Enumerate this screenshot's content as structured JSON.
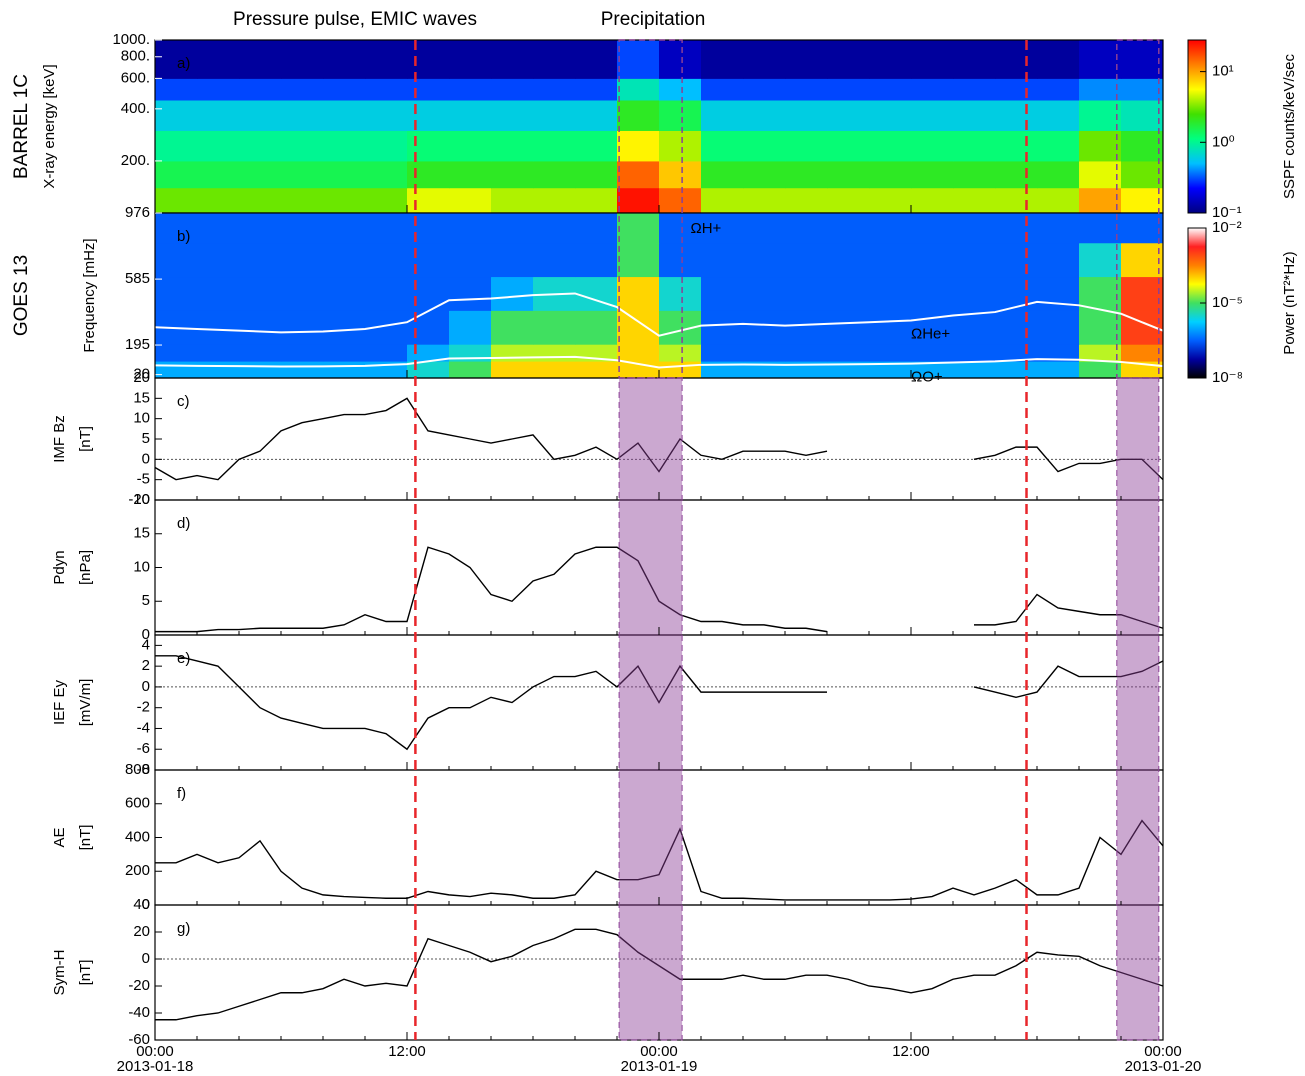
{
  "annotations": [
    {
      "text": "Pressure pulse, EMIC waves",
      "color": "#e8262b"
    },
    {
      "text": "Precipitation",
      "color": "#8b3f96"
    }
  ],
  "time_axis": {
    "xlim": [
      0,
      48
    ],
    "xticks": [
      {
        "value": 0,
        "label": "00:00"
      },
      {
        "value": 12,
        "label": "12:00"
      },
      {
        "value": 24,
        "label": "00:00"
      },
      {
        "value": 36,
        "label": "12:00"
      },
      {
        "value": 48,
        "label": "00:00"
      }
    ],
    "dates": [
      {
        "value": 0,
        "label": "2013-01-18"
      },
      {
        "value": 24,
        "label": "2013-01-19"
      },
      {
        "value": 48,
        "label": "2013-01-20"
      }
    ]
  },
  "events": {
    "lines": [
      12.4,
      41.5
    ],
    "line_color": "#e8262b",
    "spans": [
      [
        22.1,
        25.1
      ],
      [
        45.8,
        47.8
      ]
    ],
    "span_color": "#8b3f96"
  },
  "chart_data": [
    {
      "type": "heatmap",
      "panel_label": "a)",
      "ylabel": [
        "BARREL 1C",
        "X-ray energy [keV]"
      ],
      "log_y": true,
      "ylim": [
        100,
        1000
      ],
      "yticks": [
        {
          "value": 1000,
          "label": "1000."
        },
        {
          "value": 800,
          "label": "800."
        },
        {
          "value": 600,
          "label": "600."
        },
        {
          "value": 400,
          "label": "400."
        },
        {
          "value": 200,
          "label": "200."
        }
      ],
      "x_bins": [
        0,
        2,
        4,
        6,
        8,
        10,
        12,
        14,
        16,
        18,
        20,
        22,
        24,
        26,
        28,
        30,
        32,
        34,
        36,
        38,
        40,
        42,
        44,
        46,
        48
      ],
      "y_bins": [
        100,
        140,
        200,
        300,
        450,
        600,
        1000
      ],
      "values": [
        [
          3,
          3,
          3,
          3,
          3,
          3,
          5,
          5,
          4,
          4,
          4,
          25,
          15,
          4,
          4,
          4,
          4,
          4,
          4,
          4,
          4,
          4,
          10,
          6
        ],
        [
          1.5,
          1.5,
          1.5,
          1.5,
          1.5,
          1.5,
          2,
          2,
          2,
          2,
          2,
          15,
          8,
          2,
          2,
          2,
          2,
          2,
          2,
          2,
          2,
          2,
          5,
          3
        ],
        [
          1,
          1,
          1,
          1,
          1,
          1,
          1.2,
          1.2,
          1.2,
          1.2,
          1.2,
          6,
          4,
          1.2,
          1.2,
          1.2,
          1.2,
          1.2,
          1.2,
          1.2,
          1.2,
          1.2,
          3,
          2
        ],
        [
          0.6,
          0.6,
          0.6,
          0.6,
          0.6,
          0.6,
          0.6,
          0.6,
          0.6,
          0.6,
          0.6,
          2,
          1.5,
          0.6,
          0.6,
          0.6,
          0.6,
          0.6,
          0.6,
          0.6,
          0.6,
          0.6,
          1,
          0.8
        ],
        [
          0.3,
          0.3,
          0.3,
          0.3,
          0.3,
          0.3,
          0.3,
          0.3,
          0.3,
          0.3,
          0.3,
          0.8,
          0.5,
          0.3,
          0.3,
          0.3,
          0.3,
          0.3,
          0.3,
          0.3,
          0.3,
          0.3,
          0.4,
          0.4
        ],
        [
          0.12,
          0.12,
          0.12,
          0.12,
          0.12,
          0.12,
          0.12,
          0.12,
          0.12,
          0.12,
          0.12,
          0.3,
          0.15,
          0.12,
          0.12,
          0.12,
          0.12,
          0.12,
          0.12,
          0.12,
          0.12,
          0.12,
          0.15,
          0.15
        ]
      ],
      "colorbar": {
        "label": "SSPF counts/keV/sec",
        "zlim": [
          0.1,
          28
        ],
        "log": true,
        "zticks": [
          {
            "value": 0.1,
            "label": "10⁻¹"
          },
          {
            "value": 1,
            "label": "10⁰"
          },
          {
            "value": 10,
            "label": "10¹"
          }
        ],
        "colormap": [
          "#000080",
          "#0000ff",
          "#00bfff",
          "#00ff80",
          "#40e000",
          "#ffff00",
          "#ff8000",
          "#ff0000"
        ]
      }
    },
    {
      "type": "heatmap",
      "panel_label": "b)",
      "ylabel": [
        "GOES 13",
        "Frequency [mHz]"
      ],
      "log_y": false,
      "ylim": [
        0,
        976
      ],
      "yticks": [
        976,
        585,
        195,
        20
      ],
      "x_bins": [
        0,
        2,
        4,
        6,
        8,
        10,
        12,
        14,
        16,
        18,
        20,
        22,
        24,
        26,
        28,
        30,
        32,
        34,
        36,
        38,
        40,
        42,
        44,
        46,
        48
      ],
      "y_bins": [
        0,
        100,
        200,
        400,
        600,
        800,
        976
      ],
      "values": [
        [
          1e-06,
          1e-06,
          1e-06,
          1e-06,
          1e-06,
          1e-06,
          3e-06,
          1e-05,
          0.0001,
          0.0001,
          0.0001,
          0.0001,
          0.0001,
          1e-06,
          1e-06,
          1e-06,
          1e-06,
          1e-06,
          1e-06,
          1e-06,
          1e-06,
          1e-06,
          1e-05,
          0.0001
        ],
        [
          3e-07,
          3e-07,
          3e-07,
          3e-07,
          3e-07,
          3e-07,
          1e-06,
          3e-06,
          3e-05,
          3e-05,
          3e-05,
          0.0001,
          3e-05,
          3e-07,
          3e-07,
          3e-07,
          3e-07,
          3e-07,
          3e-07,
          3e-07,
          3e-07,
          3e-07,
          3e-05,
          0.0003
        ],
        [
          3e-07,
          3e-07,
          3e-07,
          3e-07,
          3e-07,
          3e-07,
          3e-07,
          1e-06,
          1e-05,
          1e-05,
          1e-05,
          0.0001,
          1e-05,
          3e-07,
          3e-07,
          3e-07,
          3e-07,
          3e-07,
          3e-07,
          3e-07,
          3e-07,
          3e-07,
          1e-05,
          0.001
        ],
        [
          3e-07,
          3e-07,
          3e-07,
          3e-07,
          3e-07,
          3e-07,
          3e-07,
          3e-07,
          1e-06,
          3e-06,
          3e-06,
          0.0001,
          3e-06,
          3e-07,
          3e-07,
          3e-07,
          3e-07,
          3e-07,
          3e-07,
          3e-07,
          3e-07,
          3e-07,
          1e-05,
          0.001
        ],
        [
          3e-07,
          3e-07,
          3e-07,
          3e-07,
          3e-07,
          3e-07,
          3e-07,
          3e-07,
          3e-07,
          3e-07,
          3e-07,
          1e-05,
          3e-07,
          3e-07,
          3e-07,
          3e-07,
          3e-07,
          3e-07,
          3e-07,
          3e-07,
          3e-07,
          3e-07,
          3e-06,
          0.0001
        ],
        [
          3e-07,
          3e-07,
          3e-07,
          3e-07,
          3e-07,
          3e-07,
          3e-07,
          3e-07,
          3e-07,
          3e-07,
          3e-07,
          1e-05,
          3e-07,
          3e-07,
          3e-07,
          3e-07,
          3e-07,
          3e-07,
          3e-07,
          3e-07,
          3e-07,
          3e-07,
          3e-07,
          3e-07
        ]
      ],
      "x": [
        0,
        2,
        4,
        6,
        8,
        10,
        12,
        14,
        16,
        18,
        20,
        22,
        24,
        26,
        28,
        30,
        32,
        34,
        36,
        38,
        40,
        42,
        44,
        46,
        48
      ],
      "series": [
        {
          "name": "ΩHe+",
          "color": "#ffffff",
          "values": [
            300,
            290,
            280,
            270,
            275,
            290,
            330,
            460,
            470,
            490,
            500,
            420,
            250,
            310,
            320,
            310,
            320,
            330,
            340,
            370,
            390,
            450,
            430,
            380,
            280
          ]
        },
        {
          "name": "ΩO+",
          "color": "#ffffff",
          "values": [
            75,
            72,
            70,
            68,
            69,
            72,
            82,
            115,
            118,
            122,
            125,
            105,
            62,
            78,
            80,
            78,
            80,
            82,
            85,
            92,
            98,
            112,
            108,
            95,
            70
          ]
        }
      ],
      "notes": [
        {
          "text": "ΩH+",
          "x": 25.5,
          "y": 880
        }
      ],
      "colorbar": {
        "label": "Power (nT²*Hz)",
        "zlim": [
          1e-08,
          0.01
        ],
        "log": true,
        "zticks": [
          {
            "value": 1e-08,
            "label": "10⁻⁸"
          },
          {
            "value": 1e-05,
            "label": "10⁻⁵"
          },
          {
            "value": 0.01,
            "label": "10⁻²"
          }
        ],
        "colormap": [
          "#000000",
          "#0000a0",
          "#0060ff",
          "#00d0ff",
          "#40e060",
          "#ffff00",
          "#ff8000",
          "#ff2020",
          "#ffffff"
        ]
      }
    },
    {
      "type": "line",
      "panel_label": "c)",
      "ylabel": [
        "IMF Bz",
        "[nT]"
      ],
      "ylim": [
        -10,
        20
      ],
      "yticks": [
        -10,
        -5,
        0,
        5,
        10,
        15,
        20
      ],
      "reference_line": 0,
      "color": "#000000",
      "x": [
        0,
        1,
        2,
        3,
        4,
        5,
        6,
        7,
        8,
        9,
        10,
        11,
        12,
        13,
        14,
        15,
        16,
        17,
        18,
        19,
        20,
        21,
        22,
        23,
        24,
        25,
        26,
        27,
        28,
        29,
        30,
        31,
        32,
        33,
        34,
        35,
        36,
        37,
        38,
        39,
        40,
        41,
        42,
        43,
        44,
        45,
        46,
        47,
        48
      ],
      "values": [
        -2,
        -5,
        -4,
        -5,
        0,
        2,
        7,
        9,
        10,
        11,
        11,
        12,
        15,
        7,
        6,
        5,
        4,
        5,
        6,
        0,
        1,
        3,
        0,
        4,
        -3,
        5,
        1,
        0,
        2,
        2,
        2,
        1,
        2,
        null,
        null,
        null,
        null,
        null,
        null,
        0,
        1,
        3,
        3,
        -3,
        -1,
        -1,
        0,
        0,
        -5
      ]
    },
    {
      "type": "line",
      "panel_label": "d)",
      "ylabel": [
        "Pdyn",
        "[nPa]"
      ],
      "ylim": [
        0,
        20
      ],
      "yticks": [
        0,
        5,
        10,
        15,
        20
      ],
      "color": "#000000",
      "x": [
        0,
        1,
        2,
        3,
        4,
        5,
        6,
        7,
        8,
        9,
        10,
        11,
        12,
        13,
        14,
        15,
        16,
        17,
        18,
        19,
        20,
        21,
        22,
        23,
        24,
        25,
        26,
        27,
        28,
        29,
        30,
        31,
        32,
        33,
        34,
        35,
        36,
        37,
        38,
        39,
        40,
        41,
        42,
        43,
        44,
        45,
        46,
        47,
        48
      ],
      "values": [
        0.5,
        0.5,
        0.5,
        0.8,
        0.8,
        1,
        1,
        1,
        1,
        1.5,
        3,
        2,
        2,
        13,
        12,
        10,
        6,
        5,
        8,
        9,
        12,
        13,
        13,
        11,
        5,
        3,
        2,
        2,
        1.5,
        1.5,
        1,
        1,
        0.5,
        null,
        null,
        null,
        null,
        null,
        null,
        1.5,
        1.5,
        2,
        6,
        4,
        3.5,
        3,
        3,
        2,
        1
      ]
    },
    {
      "type": "line",
      "panel_label": "e)",
      "ylabel": [
        "IEF Ey",
        "[mV/m]"
      ],
      "ylim": [
        -8,
        5
      ],
      "yticks": [
        -8,
        -6,
        -4,
        -2,
        0,
        2,
        4
      ],
      "reference_line": 0,
      "color": "#000000",
      "x": [
        0,
        1,
        2,
        3,
        4,
        5,
        6,
        7,
        8,
        9,
        10,
        11,
        12,
        13,
        14,
        15,
        16,
        17,
        18,
        19,
        20,
        21,
        22,
        23,
        24,
        25,
        26,
        27,
        28,
        29,
        30,
        31,
        32,
        33,
        34,
        35,
        36,
        37,
        38,
        39,
        40,
        41,
        42,
        43,
        44,
        45,
        46,
        47,
        48
      ],
      "values": [
        3,
        3,
        2.5,
        2,
        0,
        -2,
        -3,
        -3.5,
        -4,
        -4,
        -4,
        -4.5,
        -6,
        -3,
        -2,
        -2,
        -1,
        -1.5,
        0,
        1,
        1,
        1.5,
        0,
        2,
        -1.5,
        2,
        -0.5,
        -0.5,
        -0.5,
        -0.5,
        -0.5,
        -0.5,
        -0.5,
        null,
        null,
        null,
        null,
        null,
        null,
        0,
        -0.5,
        -1,
        -0.5,
        2,
        1,
        1,
        1,
        1.5,
        2.5
      ]
    },
    {
      "type": "line",
      "panel_label": "f)",
      "ylabel": [
        "AE",
        "[nT]"
      ],
      "ylim": [
        0,
        800
      ],
      "yticks": [
        0,
        200,
        400,
        600,
        800
      ],
      "color": "#000000",
      "x": [
        0,
        1,
        2,
        3,
        4,
        5,
        6,
        7,
        8,
        9,
        10,
        11,
        12,
        13,
        14,
        15,
        16,
        17,
        18,
        19,
        20,
        21,
        22,
        23,
        24,
        25,
        26,
        27,
        28,
        29,
        30,
        31,
        32,
        33,
        34,
        35,
        36,
        37,
        38,
        39,
        40,
        41,
        42,
        43,
        44,
        45,
        46,
        47,
        48
      ],
      "values": [
        250,
        250,
        300,
        250,
        280,
        380,
        200,
        100,
        60,
        50,
        45,
        40,
        40,
        80,
        60,
        50,
        70,
        60,
        40,
        40,
        60,
        200,
        150,
        150,
        180,
        450,
        80,
        40,
        40,
        35,
        30,
        30,
        30,
        30,
        30,
        30,
        35,
        50,
        100,
        60,
        100,
        150,
        60,
        60,
        100,
        400,
        300,
        500,
        350
      ]
    },
    {
      "type": "line",
      "panel_label": "g)",
      "ylabel": [
        "Sym-H",
        "[nT]"
      ],
      "ylim": [
        -60,
        40
      ],
      "yticks": [
        -60,
        -40,
        -20,
        0,
        20,
        40
      ],
      "reference_line": 0,
      "color": "#000000",
      "x": [
        0,
        1,
        2,
        3,
        4,
        5,
        6,
        7,
        8,
        9,
        10,
        11,
        12,
        13,
        14,
        15,
        16,
        17,
        18,
        19,
        20,
        21,
        22,
        23,
        24,
        25,
        26,
        27,
        28,
        29,
        30,
        31,
        32,
        33,
        34,
        35,
        36,
        37,
        38,
        39,
        40,
        41,
        42,
        43,
        44,
        45,
        46,
        47,
        48
      ],
      "values": [
        -45,
        -45,
        -42,
        -40,
        -35,
        -30,
        -25,
        -25,
        -22,
        -15,
        -20,
        -18,
        -20,
        15,
        10,
        5,
        -2,
        2,
        10,
        15,
        22,
        22,
        18,
        5,
        -5,
        -15,
        -15,
        -15,
        -12,
        -15,
        -15,
        -12,
        -12,
        -15,
        -20,
        -22,
        -25,
        -22,
        -15,
        -12,
        -12,
        -5,
        5,
        3,
        2,
        -5,
        -10,
        -15,
        -20
      ]
    }
  ]
}
